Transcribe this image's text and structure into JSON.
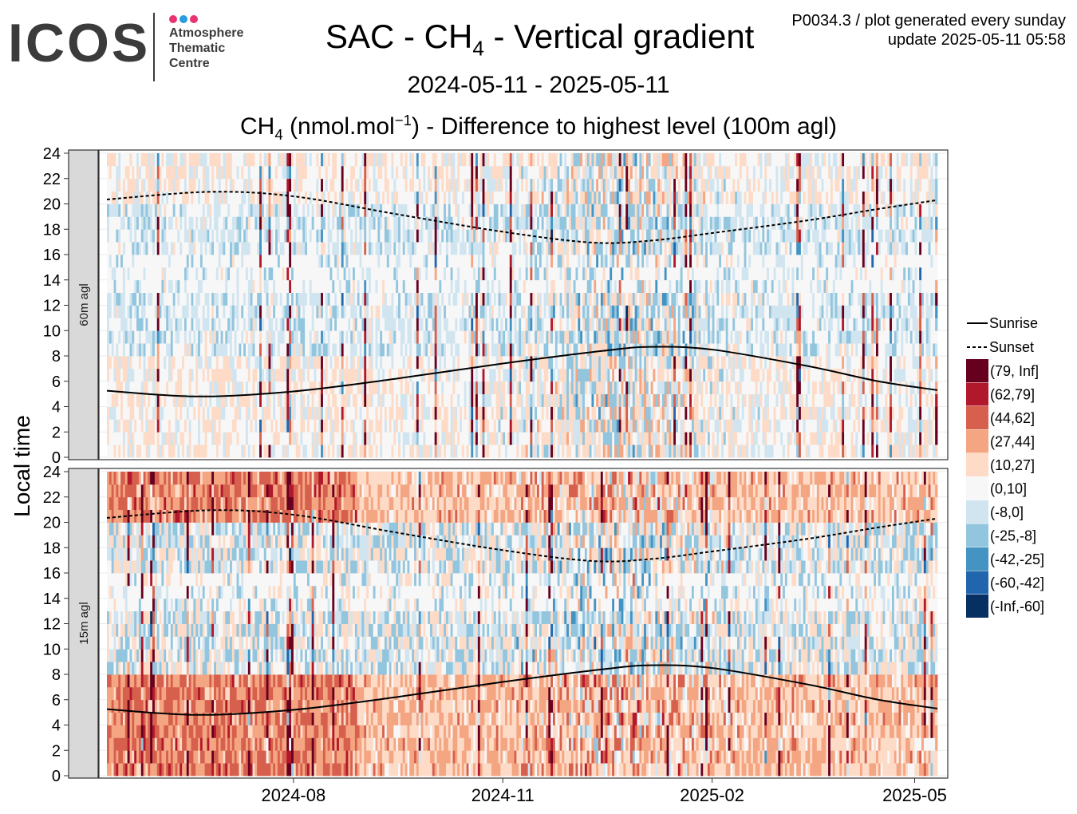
{
  "logo": {
    "word": "ICOS",
    "line1": "Atmosphere",
    "line2": "Thematic",
    "line3": "Centre",
    "dot_colors": [
      "#e8336f",
      "#2a9de0",
      "#e8336f"
    ]
  },
  "header": {
    "title_prefix": "SAC - CH",
    "title_sub": "4",
    "title_suffix": " - Vertical gradient",
    "date_range": "2024-05-11 - 2025-05-11",
    "subtitle_prefix": "CH",
    "subtitle_sub": "4",
    "subtitle_mid": " (nmol.mol",
    "subtitle_sup": "−1",
    "subtitle_suffix": ") - Difference to highest level (100m agl)",
    "meta_line1": "P0034.3 / plot generated every sunday",
    "meta_line2": "update  2025-05-11 05:58"
  },
  "chart_data": {
    "type": "heatmap",
    "title": "CH4 (nmol.mol-1) - Difference to highest level (100m agl)",
    "ylabel": "Local time",
    "ylim": [
      0,
      24
    ],
    "yticks": [
      "0",
      "2",
      "4",
      "6",
      "8",
      "10",
      "12",
      "14",
      "16",
      "18",
      "20",
      "22",
      "24"
    ],
    "x_start": "2024-05-11",
    "x_end": "2025-05-11",
    "xticks": [
      {
        "date": "2024-08-01",
        "label": "2024-08"
      },
      {
        "date": "2024-11-01",
        "label": "2024-11"
      },
      {
        "date": "2025-02-01",
        "label": "2025-02"
      },
      {
        "date": "2025-05-01",
        "label": "2025-05"
      }
    ],
    "panels": [
      {
        "label": "60m agl"
      },
      {
        "label": "15m agl"
      }
    ],
    "lines": [
      {
        "name": "Sunrise",
        "style": "solid",
        "points": [
          [
            "2024-05-11",
            5.25
          ],
          [
            "2024-06-20",
            4.8
          ],
          [
            "2024-08-01",
            5.2
          ],
          [
            "2024-09-15",
            6.2
          ],
          [
            "2024-11-01",
            7.4
          ],
          [
            "2024-12-15",
            8.4
          ],
          [
            "2025-01-05",
            8.72
          ],
          [
            "2025-02-01",
            8.5
          ],
          [
            "2025-03-15",
            7.2
          ],
          [
            "2025-04-15",
            6.0
          ],
          [
            "2025-05-11",
            5.3
          ]
        ]
      },
      {
        "name": "Sunset",
        "style": "dashed",
        "points": [
          [
            "2024-05-11",
            20.35
          ],
          [
            "2024-06-25",
            20.95
          ],
          [
            "2024-08-01",
            20.6
          ],
          [
            "2024-09-15",
            19.2
          ],
          [
            "2024-11-01",
            17.8
          ],
          [
            "2024-12-10",
            16.95
          ],
          [
            "2025-01-05",
            17.1
          ],
          [
            "2025-02-01",
            17.7
          ],
          [
            "2025-03-15",
            18.7
          ],
          [
            "2025-04-15",
            19.6
          ],
          [
            "2025-05-11",
            20.3
          ]
        ]
      }
    ],
    "legend": {
      "placement": "right",
      "bins": [
        {
          "label": "(79, Inf]",
          "color": "#67001f"
        },
        {
          "label": "(62,79]",
          "color": "#b2182b"
        },
        {
          "label": "(44,62]",
          "color": "#d6604d"
        },
        {
          "label": "(27,44]",
          "color": "#f4a582"
        },
        {
          "label": "(10,27]",
          "color": "#fddbc7"
        },
        {
          "label": "(0,10]",
          "color": "#f7f7f7"
        },
        {
          "label": "(-8,0]",
          "color": "#d1e5f0"
        },
        {
          "label": "(-25,-8]",
          "color": "#92c5de"
        },
        {
          "label": "(-42,-25]",
          "color": "#4393c3"
        },
        {
          "label": "(-60,-42]",
          "color": "#2166ac"
        },
        {
          "label": "(-Inf,-60]",
          "color": "#053061"
        }
      ]
    }
  }
}
